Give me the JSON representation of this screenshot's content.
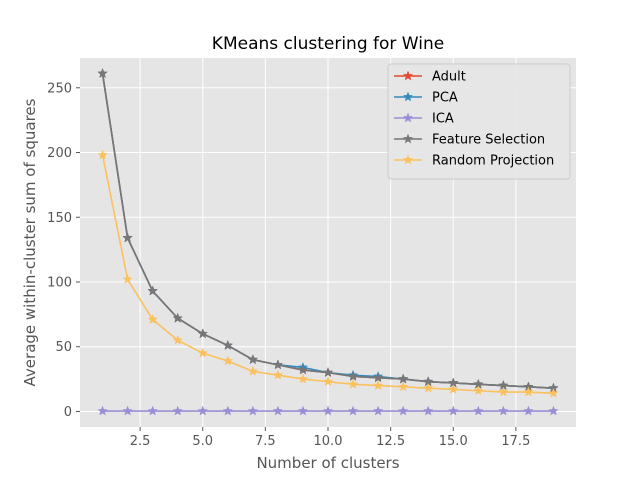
{
  "chart_data": {
    "type": "line",
    "title": "KMeans clustering for Wine",
    "xlabel": "Number of clusters",
    "ylabel": "Average within-cluster sum of squares",
    "xlim": [
      0.1,
      19.9
    ],
    "ylim": [
      -12,
      273
    ],
    "xticks": [
      2.5,
      5.0,
      7.5,
      10.0,
      12.5,
      15.0,
      17.5
    ],
    "xtick_labels": [
      "2.5",
      "5.0",
      "7.5",
      "10.0",
      "12.5",
      "15.0",
      "17.5"
    ],
    "yticks": [
      0,
      50,
      100,
      150,
      200,
      250
    ],
    "ytick_labels": [
      "0",
      "50",
      "100",
      "150",
      "200",
      "250"
    ],
    "grid": true,
    "legend_position": "top-right",
    "x": [
      1,
      2,
      3,
      4,
      5,
      6,
      7,
      8,
      9,
      10,
      11,
      12,
      13,
      14,
      15,
      16,
      17,
      18,
      19
    ],
    "series": [
      {
        "name": "Adult",
        "color": "#e24a33",
        "marker": "star",
        "values": [
          261,
          134,
          93,
          72,
          60,
          51,
          40,
          36,
          32,
          30,
          27,
          26,
          25,
          23,
          22,
          21,
          20,
          19,
          18
        ]
      },
      {
        "name": "PCA",
        "color": "#348abd",
        "marker": "star",
        "values": [
          261,
          134,
          93,
          72,
          60,
          51,
          40,
          36,
          34,
          30,
          28,
          27,
          25,
          23,
          22,
          21,
          20,
          19,
          18
        ]
      },
      {
        "name": "ICA",
        "color": "#988ed5",
        "marker": "star",
        "values": [
          0.3,
          0.3,
          0.3,
          0.3,
          0.3,
          0.3,
          0.3,
          0.3,
          0.3,
          0.3,
          0.3,
          0.3,
          0.3,
          0.3,
          0.3,
          0.3,
          0.3,
          0.3,
          0.3
        ]
      },
      {
        "name": "Feature Selection",
        "color": "#777777",
        "marker": "star",
        "values": [
          261,
          134,
          93,
          72,
          60,
          51,
          40,
          36,
          32,
          30,
          27,
          26,
          25,
          23,
          22,
          21,
          20,
          19,
          18
        ]
      },
      {
        "name": "Random Projection",
        "color": "#fbc15e",
        "marker": "star",
        "values": [
          198,
          102,
          71,
          55,
          45,
          39,
          31,
          28,
          25,
          23,
          21,
          20,
          19,
          18,
          17,
          16,
          15,
          15,
          14
        ]
      }
    ]
  }
}
